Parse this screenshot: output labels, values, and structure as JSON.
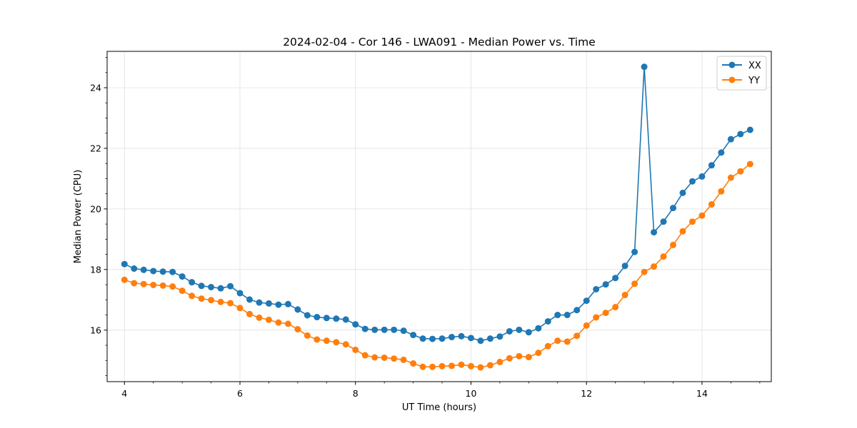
{
  "chart_data": {
    "type": "line",
    "title": "2024-02-04 - Cor 146 - LWA091 - Median Power vs. Time",
    "xlabel": "UT Time (hours)",
    "ylabel": "Median Power (CPU)",
    "xlim": [
      3.7,
      15.2
    ],
    "ylim": [
      14.3,
      25.2
    ],
    "xticks": [
      4,
      6,
      8,
      10,
      12,
      14
    ],
    "yticks": [
      16,
      18,
      20,
      22,
      24
    ],
    "grid": true,
    "legend_position": "top-right",
    "x": [
      4.0,
      4.1667,
      4.3333,
      4.5,
      4.6667,
      4.8333,
      5.0,
      5.1667,
      5.3333,
      5.5,
      5.6667,
      5.8333,
      6.0,
      6.1667,
      6.3333,
      6.5,
      6.6667,
      6.8333,
      7.0,
      7.1667,
      7.3333,
      7.5,
      7.6667,
      7.8333,
      8.0,
      8.1667,
      8.3333,
      8.5,
      8.6667,
      8.8333,
      9.0,
      9.1667,
      9.3333,
      9.5,
      9.6667,
      9.8333,
      10.0,
      10.1667,
      10.3333,
      10.5,
      10.6667,
      10.8333,
      11.0,
      11.1667,
      11.3333,
      11.5,
      11.6667,
      11.8333,
      12.0,
      12.1667,
      12.3333,
      12.5,
      12.6667,
      12.8333,
      13.0,
      13.1667,
      13.3333,
      13.5,
      13.6667,
      13.8333,
      14.0,
      14.1667,
      14.3333,
      14.5,
      14.6667,
      14.8333
    ],
    "series": [
      {
        "name": "XX",
        "color": "#1f77b4",
        "values": [
          18.18,
          18.03,
          17.99,
          17.95,
          17.93,
          17.92,
          17.77,
          17.58,
          17.46,
          17.42,
          17.38,
          17.45,
          17.22,
          17.01,
          16.91,
          16.88,
          16.84,
          16.86,
          16.68,
          16.49,
          16.43,
          16.4,
          16.38,
          16.35,
          16.19,
          16.04,
          16.01,
          16.01,
          16.01,
          15.98,
          15.84,
          15.72,
          15.71,
          15.72,
          15.77,
          15.8,
          15.74,
          15.65,
          15.72,
          15.79,
          15.96,
          16.01,
          15.93,
          16.06,
          16.29,
          16.5,
          16.5,
          16.66,
          16.97,
          17.35,
          17.51,
          17.72,
          18.12,
          18.58,
          24.69,
          19.23,
          19.58,
          20.03,
          20.53,
          20.91,
          21.07,
          21.44,
          21.86,
          22.3,
          22.47,
          22.61
        ]
      },
      {
        "name": "YY",
        "color": "#ff7f0e",
        "values": [
          17.66,
          17.55,
          17.52,
          17.49,
          17.47,
          17.44,
          17.3,
          17.13,
          17.04,
          16.99,
          16.93,
          16.89,
          16.73,
          16.53,
          16.41,
          16.34,
          16.25,
          16.21,
          16.03,
          15.82,
          15.69,
          15.65,
          15.6,
          15.53,
          15.35,
          15.17,
          15.1,
          15.09,
          15.06,
          15.02,
          14.9,
          14.79,
          14.79,
          14.81,
          14.82,
          14.86,
          14.81,
          14.77,
          14.84,
          14.95,
          15.07,
          15.14,
          15.11,
          15.25,
          15.47,
          15.65,
          15.62,
          15.81,
          16.15,
          16.42,
          16.57,
          16.76,
          17.16,
          17.53,
          17.92,
          18.1,
          18.43,
          18.81,
          19.26,
          19.58,
          19.78,
          20.15,
          20.58,
          21.03,
          21.24,
          21.48
        ]
      }
    ]
  }
}
